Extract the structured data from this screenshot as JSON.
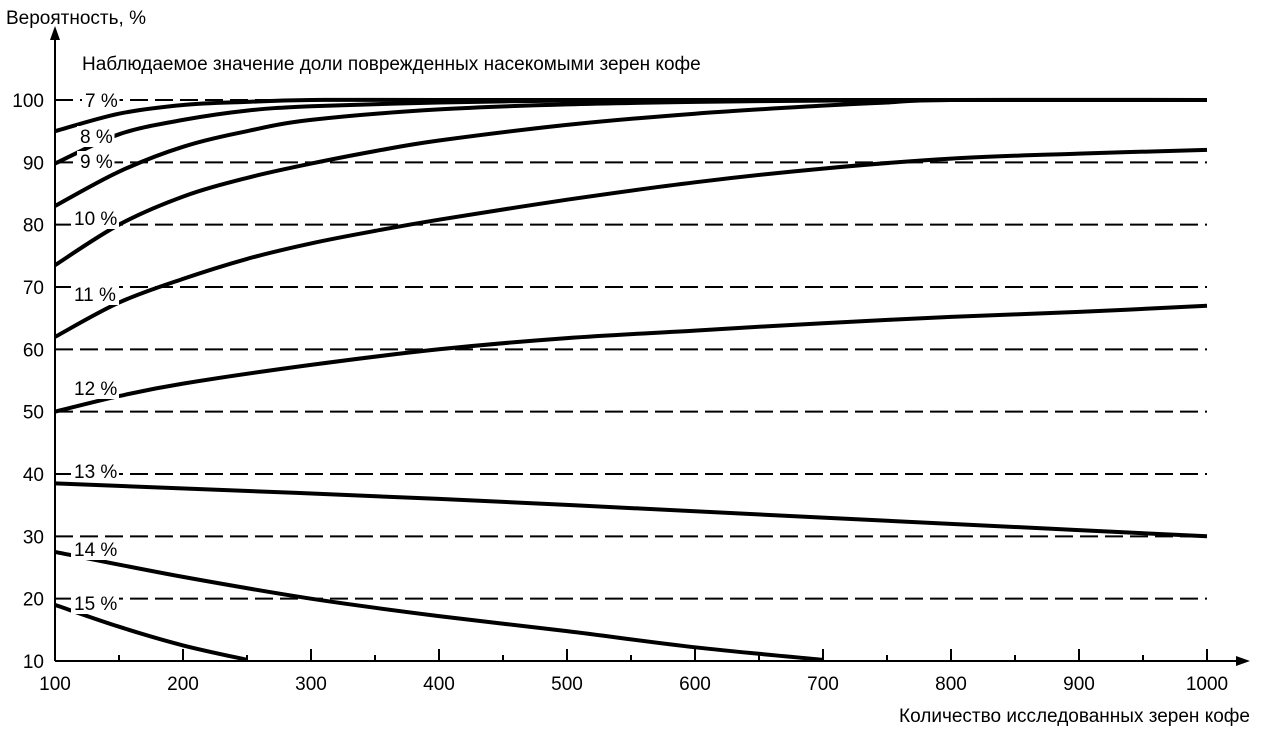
{
  "chart_data": {
    "type": "line",
    "title": "Наблюдаемое значение доли поврежденных насекомыми зерен кофе",
    "xlabel": "Количество исследованных зерен кофе",
    "ylabel": "Вероятность, %",
    "xlim": [
      100,
      1000
    ],
    "ylim": [
      10,
      100
    ],
    "xticks": [
      100,
      200,
      300,
      400,
      500,
      600,
      700,
      800,
      900,
      1000
    ],
    "xtick_labels": [
      "100",
      "200",
      "300",
      "400",
      "500",
      "600",
      "700",
      "800",
      "900",
      "1000"
    ],
    "yticks": [
      10,
      20,
      30,
      40,
      50,
      60,
      70,
      80,
      90,
      100
    ],
    "ytick_labels": [
      "10",
      "20",
      "30",
      "40",
      "50",
      "60",
      "70",
      "80",
      "90",
      "100"
    ],
    "grid": "dashed horizontal",
    "series": [
      {
        "name": "7 %",
        "x": [
          100,
          150,
          200,
          250,
          300,
          400,
          1000
        ],
        "y": [
          95,
          97.8,
          99.2,
          99.7,
          100,
          100,
          100
        ]
      },
      {
        "name": "8 %",
        "x": [
          100,
          150,
          200,
          250,
          300,
          400,
          500,
          600,
          700,
          1000
        ],
        "y": [
          89.8,
          94.5,
          96.8,
          98.3,
          99,
          99.6,
          99.9,
          100,
          100,
          100
        ]
      },
      {
        "name": "9 %",
        "x": [
          100,
          150,
          200,
          250,
          300,
          400,
          500,
          600,
          700,
          800,
          1000
        ],
        "y": [
          83,
          88.5,
          92.5,
          95,
          96.8,
          98.5,
          99.3,
          99.7,
          99.9,
          100,
          100
        ]
      },
      {
        "name": "10 %",
        "x": [
          100,
          150,
          200,
          250,
          300,
          350,
          400,
          500,
          600,
          700,
          750,
          800,
          1000
        ],
        "y": [
          73.5,
          80,
          84.5,
          87.5,
          89.8,
          91.8,
          93.5,
          96,
          97.8,
          99.1,
          99.6,
          100,
          100
        ]
      },
      {
        "name": "11 %",
        "x": [
          100,
          150,
          200,
          250,
          300,
          350,
          400,
          500,
          600,
          700,
          800,
          900,
          1000
        ],
        "y": [
          62,
          67.5,
          71.3,
          74.5,
          77,
          79,
          80.8,
          84,
          86.8,
          89,
          90.6,
          91.4,
          92
        ]
      },
      {
        "name": "12 %",
        "x": [
          100,
          150,
          200,
          300,
          400,
          500,
          600,
          700,
          800,
          900,
          1000
        ],
        "y": [
          50,
          52.5,
          54.5,
          57.5,
          60,
          61.8,
          63,
          64.2,
          65.2,
          66,
          67
        ]
      },
      {
        "name": "13 %",
        "x": [
          100,
          400,
          700,
          900,
          1000
        ],
        "y": [
          38.5,
          36,
          33,
          31,
          30
        ]
      },
      {
        "name": "14 %",
        "x": [
          100,
          200,
          300,
          400,
          500,
          600,
          700
        ],
        "y": [
          27.5,
          23.5,
          20,
          17.2,
          14.8,
          12.2,
          10.2
        ]
      },
      {
        "name": "15 %",
        "x": [
          100,
          150,
          200,
          250
        ],
        "y": [
          19,
          15.5,
          12.5,
          10.2
        ]
      }
    ]
  }
}
